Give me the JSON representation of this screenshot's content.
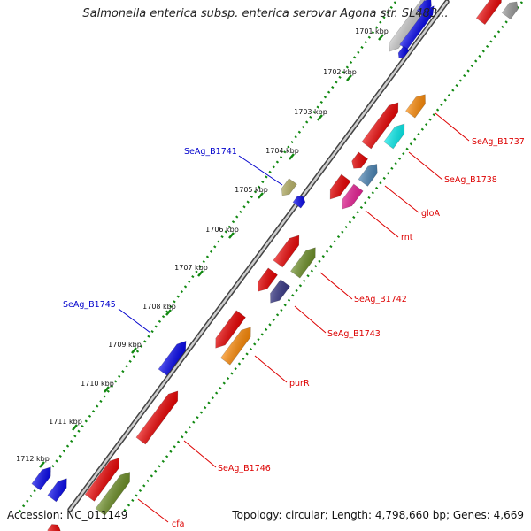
{
  "header": {
    "title": "Salmonella enterica subsp. enterica serovar Agona str. SL483..."
  },
  "footer": {
    "accession_text": "Accession: NC_011149",
    "topology_text": "Topology: circular; Length: 4,798,660 bp; Genes: 4,669"
  },
  "ticks": [
    "1701 kbp",
    "1702 kbp",
    "1703 kbp",
    "1704 kbp",
    "1705 kbp",
    "1706 kbp",
    "1707 kbp",
    "1708 kbp",
    "1709 kbp",
    "1710 kbp",
    "1711 kbp",
    "1712 kbp"
  ],
  "labels": [
    {
      "text": "SeAg_B1737",
      "color": "#dd0000"
    },
    {
      "text": "SeAg_B1738",
      "color": "#dd0000"
    },
    {
      "text": "gloA",
      "color": "#dd0000"
    },
    {
      "text": "rnt",
      "color": "#dd0000"
    },
    {
      "text": "SeAg_B1741",
      "color": "#0000cc"
    },
    {
      "text": "SeAg_B1742",
      "color": "#dd0000"
    },
    {
      "text": "SeAg_B1743",
      "color": "#dd0000"
    },
    {
      "text": "SeAg_B1745",
      "color": "#0000cc"
    },
    {
      "text": "purR",
      "color": "#dd0000"
    },
    {
      "text": "SeAg_B1746",
      "color": "#dd0000"
    },
    {
      "text": "cfa",
      "color": "#dd0000"
    }
  ],
  "colors": {
    "backbone": "#888888",
    "tick_dots": "#118811",
    "red": "#ee0000",
    "blue": "#0000ee",
    "orange": "#ff8800",
    "cyan": "#00eeee",
    "olive": "#6b8e23",
    "navy": "#3a3a8a",
    "pink": "#ee2299",
    "khaki": "#bdb76b",
    "steel": "#4682b4",
    "grey": "#999999",
    "silver": "#cccccc",
    "red_label": "#dd0000",
    "blue_label": "#0000cc"
  }
}
